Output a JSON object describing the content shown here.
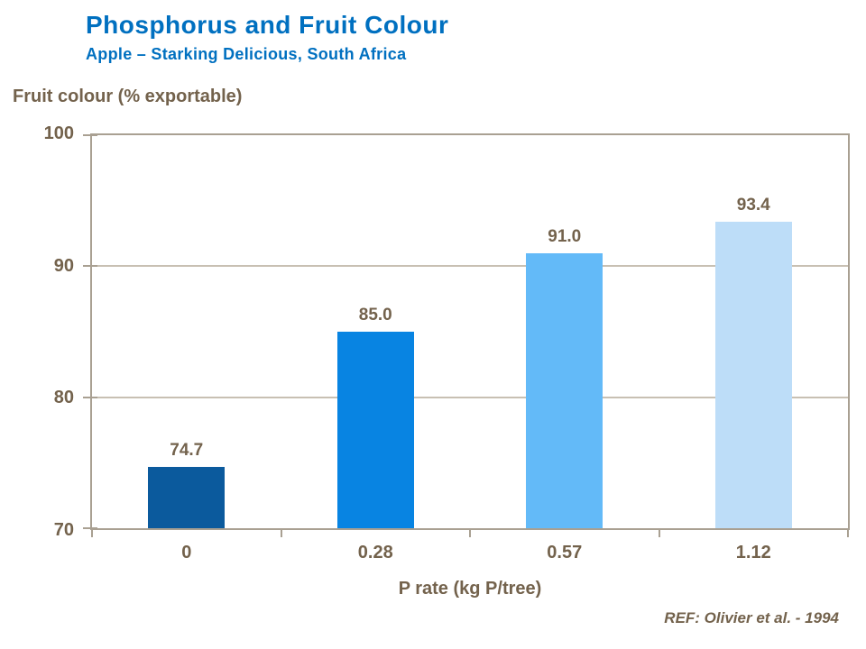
{
  "header": {
    "title": "Phosphorus and Fruit Colour",
    "subtitle": "Apple – Starking Delicious, South Africa"
  },
  "footer": {
    "reference": "REF: Olivier et al. - 1994"
  },
  "colors": {
    "title_blue": "#0070C0",
    "text_brown": "#73624C",
    "axis_line": "#A9A092",
    "gridline": "#C8C0B3"
  },
  "chart_data": {
    "type": "bar",
    "title": "Phosphorus and Fruit Colour",
    "subtitle": "Apple – Starking Delicious, South Africa",
    "categories": [
      "0",
      "0.28",
      "0.57",
      "1.12"
    ],
    "values": [
      74.7,
      85.0,
      91.0,
      93.4
    ],
    "value_labels": [
      "74.7",
      "85.0",
      "91.0",
      "93.4"
    ],
    "bar_colors": [
      "#0B5A9D",
      "#0884E2",
      "#63BAF8",
      "#BDDDF8"
    ],
    "xlabel": "P rate (kg P/tree)",
    "ylabel": "Fruit colour (% exportable)",
    "ylim": [
      70,
      100
    ],
    "yticks": [
      100,
      90,
      80,
      70
    ],
    "gridlines_at": [
      90,
      80
    ],
    "grid": true,
    "legend": "none",
    "annotation": "REF: Olivier et al. - 1994"
  }
}
